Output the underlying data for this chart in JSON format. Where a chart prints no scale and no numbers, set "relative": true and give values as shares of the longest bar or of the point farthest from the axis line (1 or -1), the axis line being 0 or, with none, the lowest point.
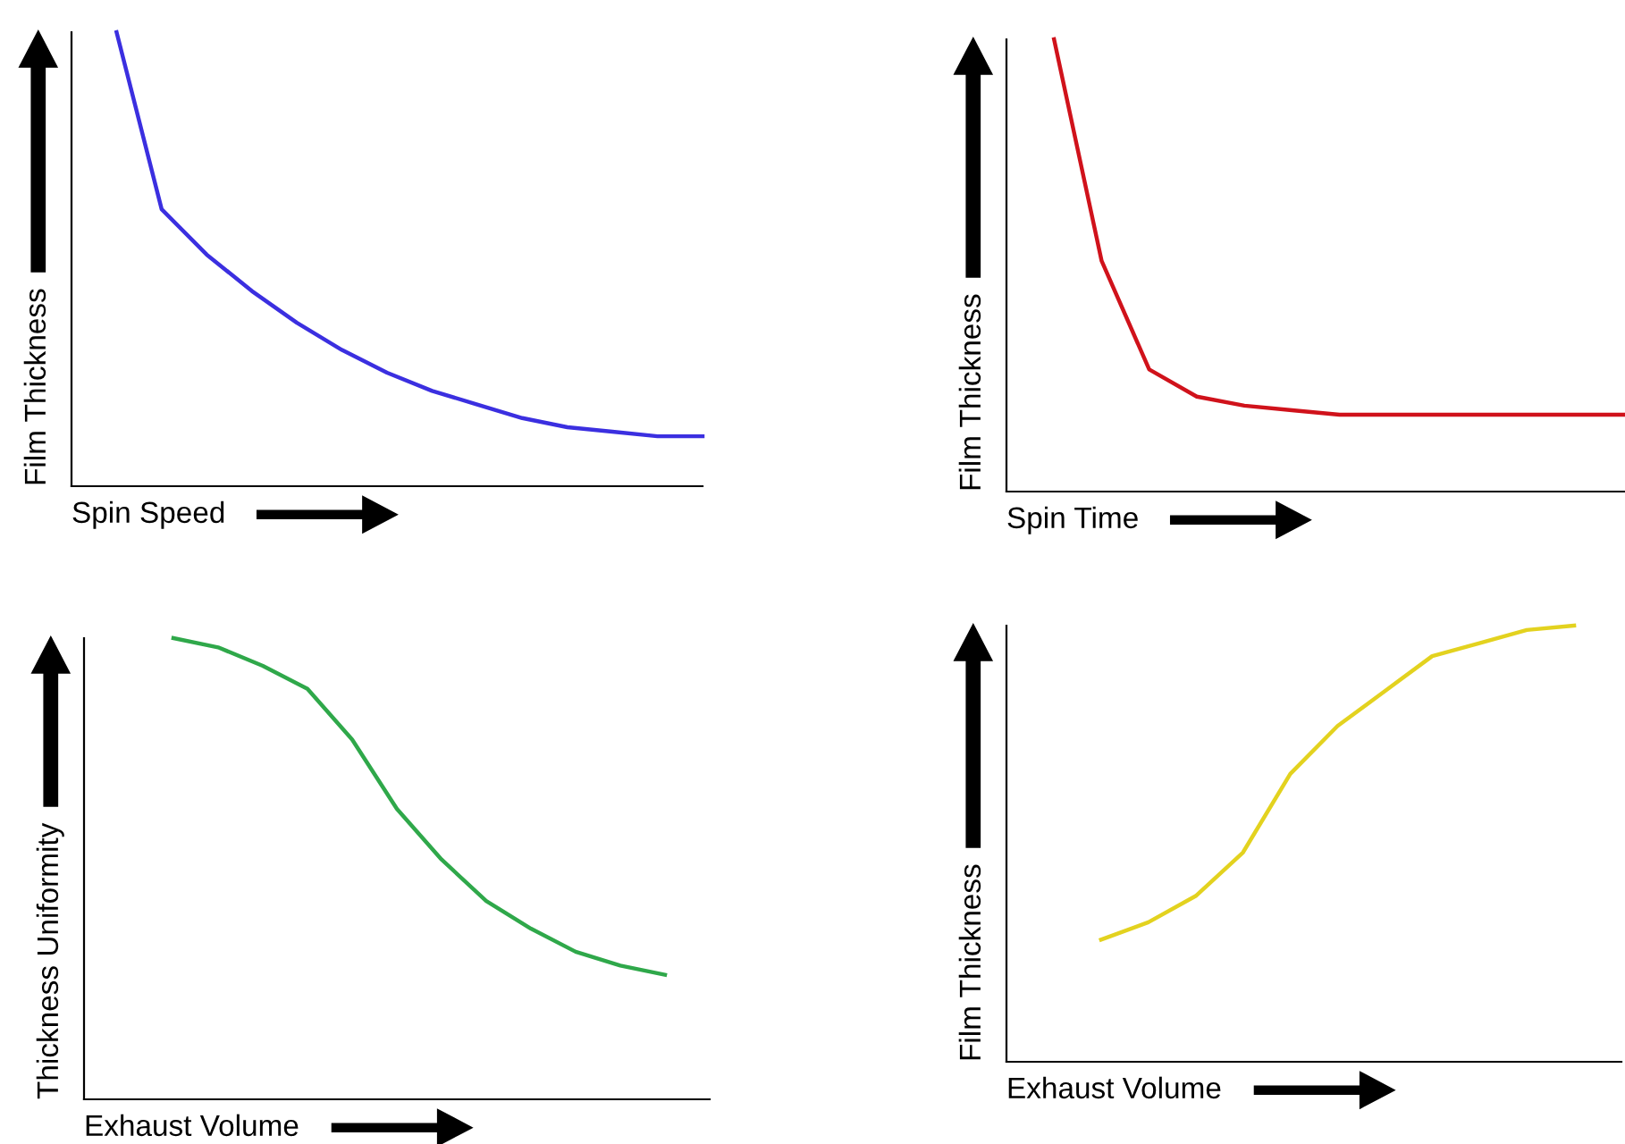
{
  "chart_data": [
    {
      "type": "line",
      "relative": true,
      "xlabel": "Spin Speed",
      "ylabel": "Film Thickness",
      "tick_labels": false,
      "grid": false,
      "legend": false,
      "marker": "none",
      "line_style": "solid",
      "categories": [
        null,
        null,
        null,
        null,
        null,
        null,
        null,
        null,
        null,
        null,
        null,
        null,
        null,
        null,
        null
      ],
      "series": [
        {
          "color": "#3b2fe0",
          "values": [
            null,
            1,
            0.61,
            0.51,
            0.43,
            0.36,
            0.3,
            0.25,
            0.21,
            0.18,
            0.15,
            0.13,
            0.12,
            0.11,
            0.11
          ]
        }
      ]
    },
    {
      "type": "line",
      "relative": true,
      "xlabel": "Spin Time",
      "ylabel": "Film Thickness",
      "tick_labels": false,
      "grid": false,
      "legend": false,
      "marker": "none",
      "line_style": "solid",
      "categories": [
        null,
        null,
        null,
        null,
        null,
        null,
        null,
        null,
        null,
        null,
        null,
        null,
        null,
        null
      ],
      "series": [
        {
          "color": "#d0121b",
          "values": [
            null,
            1,
            0.51,
            0.27,
            0.21,
            0.19,
            0.18,
            0.17,
            0.17,
            0.17,
            0.17,
            0.17,
            0.17,
            0.17
          ]
        }
      ]
    },
    {
      "type": "line",
      "relative": true,
      "xlabel": "Exhaust Volume",
      "ylabel": "Thickness Uniformity",
      "tick_labels": false,
      "grid": false,
      "legend": false,
      "marker": "none",
      "line_style": "solid",
      "categories": [
        null,
        null,
        null,
        null,
        null,
        null,
        null,
        null,
        null,
        null,
        null,
        null,
        null,
        null,
        null
      ],
      "series": [
        {
          "color": "#2fa84a",
          "values": [
            null,
            null,
            1,
            0.98,
            0.94,
            0.89,
            0.78,
            0.63,
            0.52,
            0.43,
            0.37,
            0.32,
            0.29,
            0.27,
            null
          ]
        }
      ]
    },
    {
      "type": "line",
      "relative": true,
      "xlabel": "Exhaust Volume",
      "ylabel": "Film Thickness",
      "tick_labels": false,
      "grid": false,
      "legend": false,
      "marker": "none",
      "line_style": "solid",
      "categories": [
        null,
        null,
        null,
        null,
        null,
        null,
        null,
        null,
        null,
        null,
        null,
        null,
        null,
        null
      ],
      "series": [
        {
          "color": "#e3d21f",
          "values": [
            null,
            null,
            0.28,
            0.32,
            0.38,
            0.48,
            0.66,
            0.77,
            0.85,
            0.93,
            0.96,
            0.99,
            1,
            null
          ]
        }
      ]
    }
  ]
}
